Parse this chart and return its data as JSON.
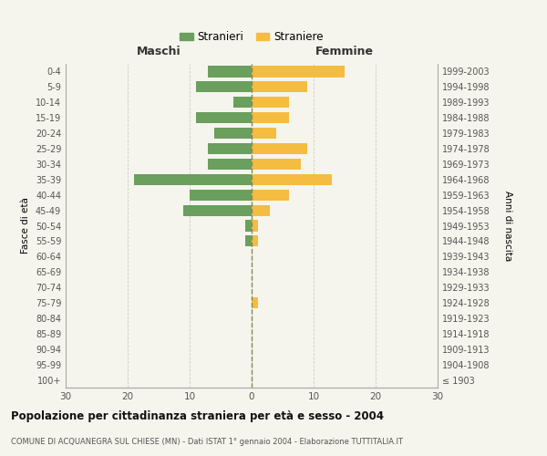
{
  "age_groups": [
    "0-4",
    "5-9",
    "10-14",
    "15-19",
    "20-24",
    "25-29",
    "30-34",
    "35-39",
    "40-44",
    "45-49",
    "50-54",
    "55-59",
    "60-64",
    "65-69",
    "70-74",
    "75-79",
    "80-84",
    "85-89",
    "90-94",
    "95-99",
    "100+"
  ],
  "birth_years": [
    "1999-2003",
    "1994-1998",
    "1989-1993",
    "1984-1988",
    "1979-1983",
    "1974-1978",
    "1969-1973",
    "1964-1968",
    "1959-1963",
    "1954-1958",
    "1949-1953",
    "1944-1948",
    "1939-1943",
    "1934-1938",
    "1929-1933",
    "1924-1928",
    "1919-1923",
    "1914-1918",
    "1909-1913",
    "1904-1908",
    "≤ 1903"
  ],
  "males": [
    7,
    9,
    3,
    9,
    6,
    7,
    7,
    19,
    10,
    11,
    1,
    1,
    0,
    0,
    0,
    0,
    0,
    0,
    0,
    0,
    0
  ],
  "females": [
    15,
    9,
    6,
    6,
    4,
    9,
    8,
    13,
    6,
    3,
    1,
    1,
    0,
    0,
    0,
    1,
    0,
    0,
    0,
    0,
    0
  ],
  "male_color": "#6a9f5e",
  "female_color": "#f5bc42",
  "background_color": "#f5f5ed",
  "grid_color": "#cccccc",
  "title": "Popolazione per cittadinanza straniera per età e sesso - 2004",
  "subtitle": "COMUNE DI ACQUANEGRA SUL CHIESE (MN) - Dati ISTAT 1° gennaio 2004 - Elaborazione TUTTITALIA.IT",
  "xlabel_left": "Maschi",
  "xlabel_right": "Femmine",
  "ylabel_left": "Fasce di età",
  "ylabel_right": "Anni di nascita",
  "legend_male": "Stranieri",
  "legend_female": "Straniere",
  "xlim": 30,
  "bar_height": 0.72
}
